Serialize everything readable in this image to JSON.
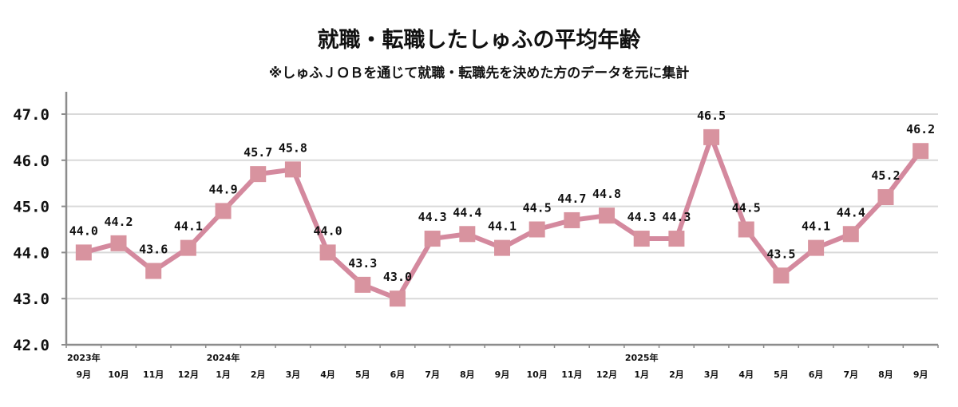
{
  "chart_data": {
    "type": "line",
    "title": "就職・転職したしゅふの平均年齢",
    "subtitle": "※しゅふＪＯＢを通じて就職・転職先を決めた方のデータを元に集計",
    "categories": [
      "9月",
      "10月",
      "11月",
      "12月",
      "1月",
      "2月",
      "3月",
      "4月",
      "5月",
      "6月",
      "7月",
      "8月",
      "9月",
      "10月",
      "11月",
      "12月",
      "1月",
      "2月",
      "3月",
      "4月",
      "5月",
      "6月",
      "7月",
      "8月",
      "9月"
    ],
    "year_labels": [
      {
        "index": 0,
        "label": "2023年"
      },
      {
        "index": 4,
        "label": "2024年"
      },
      {
        "index": 16,
        "label": "2025年"
      }
    ],
    "values": [
      44.0,
      44.2,
      43.6,
      44.1,
      44.9,
      45.7,
      45.8,
      44.0,
      43.3,
      43.0,
      44.3,
      44.4,
      44.1,
      44.5,
      44.7,
      44.8,
      44.3,
      44.3,
      46.5,
      44.5,
      43.5,
      44.1,
      44.4,
      45.2,
      46.2
    ],
    "ylim": [
      42.0,
      47.0
    ],
    "yticks": [
      "42.0",
      "43.0",
      "44.0",
      "45.0",
      "46.0",
      "47.0"
    ],
    "grid": true,
    "marker": "square",
    "colors": {
      "line": "#d4899e",
      "marker": "#d8939f",
      "grid": "#d9d9d9",
      "axis": "#8c8c8c"
    }
  }
}
